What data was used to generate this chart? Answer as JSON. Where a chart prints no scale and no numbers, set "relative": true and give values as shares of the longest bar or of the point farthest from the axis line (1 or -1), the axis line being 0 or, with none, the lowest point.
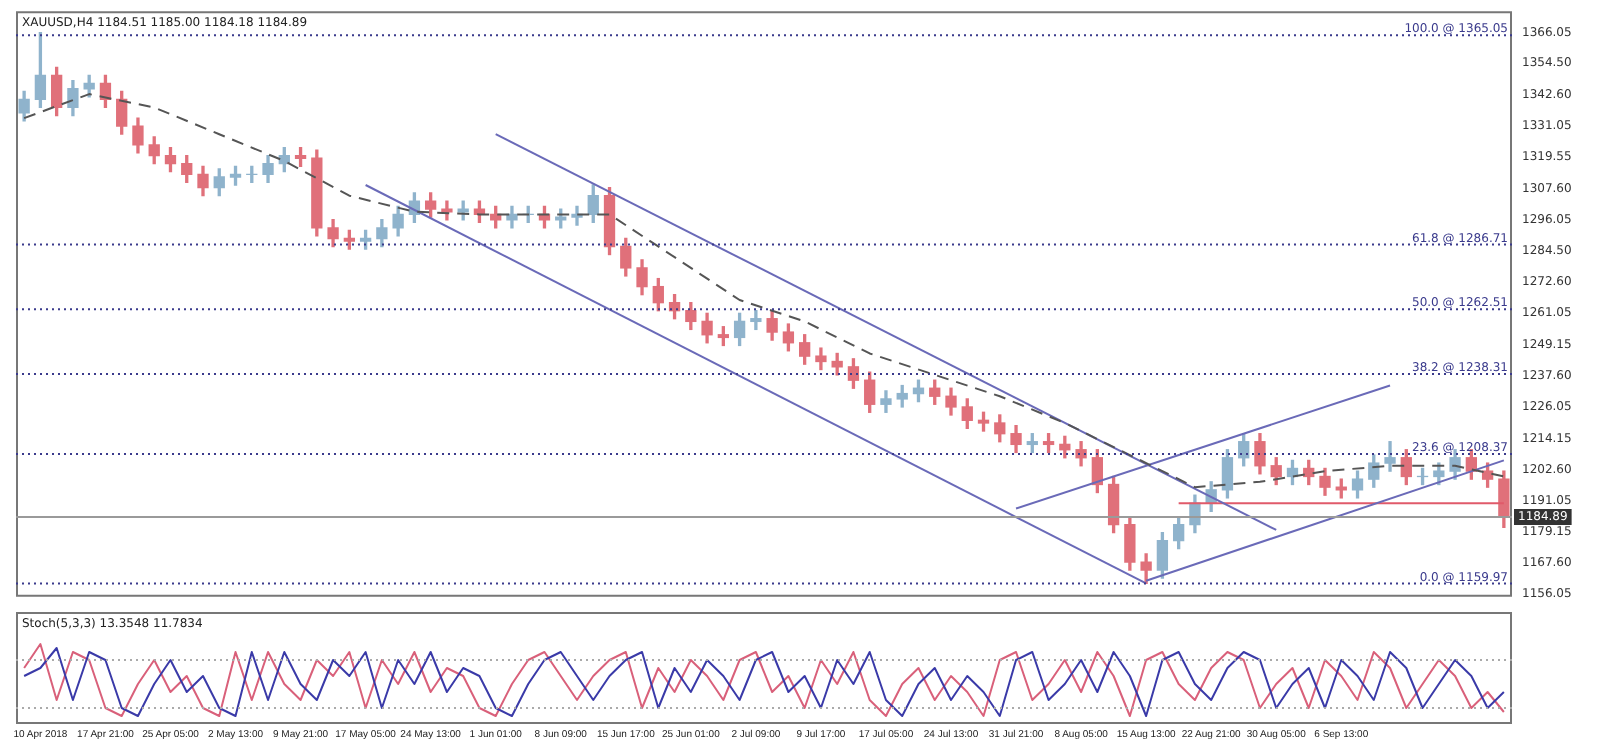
{
  "chart_data": [
    {
      "type": "candlestick",
      "title": "XAUUSD,H4 1184.51 1185.00 1184.18 1184.89",
      "categories": [
        null,
        null,
        null,
        null,
        null,
        null,
        null,
        null,
        null,
        null,
        null,
        null,
        null,
        null,
        null,
        null,
        null,
        null,
        null,
        null,
        null,
        null,
        null,
        null,
        null,
        null,
        null,
        null,
        null,
        null,
        null,
        null,
        null,
        null,
        null,
        null,
        null,
        null,
        null,
        null,
        null,
        null,
        null,
        null,
        null,
        null,
        null,
        null,
        null,
        null,
        null,
        null,
        null,
        null,
        null,
        null,
        null,
        null,
        null,
        null,
        null,
        null,
        null,
        null,
        null,
        null,
        null,
        null,
        null,
        null,
        null,
        null,
        null,
        null,
        null,
        null,
        null,
        null,
        null,
        null,
        null,
        null,
        null,
        null,
        null,
        null,
        null,
        null,
        null,
        null,
        null,
        null
      ],
      "ohlc": [
        [
          1336,
          1344,
          1333,
          1341
        ],
        [
          1341,
          1366,
          1338,
          1350
        ],
        [
          1350,
          1353,
          1335,
          1338
        ],
        [
          1338,
          1348,
          1335,
          1345
        ],
        [
          1345,
          1350,
          1342,
          1347
        ],
        [
          1347,
          1350,
          1338,
          1341
        ],
        [
          1341,
          1344,
          1328,
          1331
        ],
        [
          1331,
          1334,
          1321,
          1324
        ],
        [
          1324,
          1327,
          1317,
          1320
        ],
        [
          1320,
          1323,
          1314,
          1317
        ],
        [
          1317,
          1320,
          1310,
          1313
        ],
        [
          1313,
          1316,
          1305,
          1308
        ],
        [
          1308,
          1315,
          1305,
          1312
        ],
        [
          1312,
          1316,
          1309,
          1313
        ],
        [
          1313,
          1316,
          1310,
          1313
        ],
        [
          1313,
          1320,
          1310,
          1317
        ],
        [
          1317,
          1323,
          1314,
          1320
        ],
        [
          1320,
          1323,
          1316,
          1319
        ],
        [
          1319,
          1322,
          1290,
          1293
        ],
        [
          1293,
          1296,
          1286,
          1289
        ],
        [
          1289,
          1292,
          1285,
          1288
        ],
        [
          1288,
          1292,
          1285,
          1289
        ],
        [
          1289,
          1296,
          1286,
          1293
        ],
        [
          1293,
          1301,
          1290,
          1298
        ],
        [
          1298,
          1306,
          1295,
          1303
        ],
        [
          1303,
          1306,
          1297,
          1300
        ],
        [
          1300,
          1303,
          1296,
          1299
        ],
        [
          1299,
          1303,
          1296,
          1300
        ],
        [
          1300,
          1303,
          1295,
          1298
        ],
        [
          1298,
          1301,
          1293,
          1296
        ],
        [
          1296,
          1301,
          1293,
          1298
        ],
        [
          1298,
          1301,
          1295,
          1298
        ],
        [
          1298,
          1301,
          1293,
          1296
        ],
        [
          1296,
          1300,
          1293,
          1297
        ],
        [
          1297,
          1301,
          1294,
          1298
        ],
        [
          1298,
          1309,
          1295,
          1305
        ],
        [
          1305,
          1308,
          1283,
          1286
        ],
        [
          1286,
          1289,
          1275,
          1278
        ],
        [
          1278,
          1281,
          1268,
          1271
        ],
        [
          1271,
          1274,
          1262,
          1265
        ],
        [
          1265,
          1268,
          1259,
          1262
        ],
        [
          1262,
          1265,
          1255,
          1258
        ],
        [
          1258,
          1261,
          1250,
          1253
        ],
        [
          1253,
          1256,
          1249,
          1252
        ],
        [
          1252,
          1261,
          1249,
          1258
        ],
        [
          1258,
          1262,
          1255,
          1259
        ],
        [
          1259,
          1262,
          1251,
          1254
        ],
        [
          1254,
          1257,
          1247,
          1250
        ],
        [
          1250,
          1253,
          1242,
          1245
        ],
        [
          1245,
          1248,
          1240,
          1243
        ],
        [
          1243,
          1246,
          1238,
          1241
        ],
        [
          1241,
          1244,
          1233,
          1236
        ],
        [
          1236,
          1239,
          1224,
          1227
        ],
        [
          1227,
          1232,
          1224,
          1229
        ],
        [
          1229,
          1234,
          1226,
          1231
        ],
        [
          1231,
          1236,
          1228,
          1233
        ],
        [
          1233,
          1236,
          1227,
          1230
        ],
        [
          1230,
          1233,
          1223,
          1226
        ],
        [
          1226,
          1229,
          1218,
          1221
        ],
        [
          1221,
          1224,
          1217,
          1220
        ],
        [
          1220,
          1223,
          1213,
          1216
        ],
        [
          1216,
          1219,
          1209,
          1212
        ],
        [
          1212,
          1216,
          1209,
          1213
        ],
        [
          1213,
          1216,
          1209,
          1212
        ],
        [
          1212,
          1215,
          1207,
          1210
        ],
        [
          1210,
          1213,
          1204,
          1207
        ],
        [
          1207,
          1210,
          1194,
          1197
        ],
        [
          1197,
          1200,
          1179,
          1182
        ],
        [
          1182,
          1185,
          1165,
          1168
        ],
        [
          1168,
          1171,
          1160,
          1165
        ],
        [
          1165,
          1179,
          1162,
          1176
        ],
        [
          1176,
          1185,
          1173,
          1182
        ],
        [
          1182,
          1193,
          1179,
          1190
        ],
        [
          1190,
          1198,
          1187,
          1195
        ],
        [
          1195,
          1210,
          1192,
          1207
        ],
        [
          1207,
          1216,
          1204,
          1213
        ],
        [
          1213,
          1216,
          1201,
          1204
        ],
        [
          1204,
          1207,
          1197,
          1200
        ],
        [
          1200,
          1206,
          1197,
          1203
        ],
        [
          1203,
          1206,
          1197,
          1200
        ],
        [
          1200,
          1203,
          1193,
          1196
        ],
        [
          1196,
          1199,
          1192,
          1195
        ],
        [
          1195,
          1202,
          1192,
          1199
        ],
        [
          1199,
          1208,
          1196,
          1205
        ],
        [
          1205,
          1213,
          1202,
          1207
        ],
        [
          1207,
          1210,
          1197,
          1200
        ],
        [
          1200,
          1203,
          1197,
          1200
        ],
        [
          1200,
          1205,
          1197,
          1202
        ],
        [
          1202,
          1210,
          1199,
          1207
        ],
        [
          1207,
          1210,
          1199,
          1202
        ],
        [
          1202,
          1205,
          1196,
          1199
        ],
        [
          1199,
          1202,
          1181,
          1185
        ]
      ],
      "series": [
        {
          "type": "line",
          "color": "#555555",
          "line_style": "dashed",
          "values": [
            1334,
            null,
            null,
            null,
            1343,
            null,
            null,
            null,
            1338,
            null,
            null,
            null,
            1328,
            null,
            null,
            null,
            1318,
            null,
            null,
            null,
            1305,
            null,
            null,
            null,
            1299,
            null,
            null,
            null,
            1298,
            null,
            null,
            null,
            1298,
            null,
            null,
            null,
            1298,
            null,
            null,
            null,
            1282,
            null,
            null,
            null,
            1266,
            null,
            null,
            null,
            1258,
            null,
            null,
            null,
            1246,
            null,
            null,
            null,
            1238,
            null,
            null,
            null,
            1230,
            null,
            null,
            null,
            1220,
            null,
            null,
            null,
            1208,
            null,
            null,
            null,
            1196,
            null,
            null,
            null,
            1198,
            null,
            null,
            null,
            1202,
            null,
            null,
            null,
            1204,
            null,
            null,
            null,
            1204,
            null,
            null,
            1200
          ]
        },
        {
          "type": "line",
          "color": "#6a6ab8",
          "line_style": "solid",
          "values": [
            null,
            null,
            null,
            null,
            null,
            null,
            null,
            null,
            null,
            null,
            null,
            null,
            null,
            null,
            null,
            null,
            null,
            null,
            null,
            null,
            null,
            null,
            null,
            null,
            null,
            null,
            null,
            null,
            null,
            1328,
            null,
            null,
            null,
            null,
            null,
            null,
            null,
            null,
            null,
            null,
            null,
            null,
            null,
            null,
            null,
            null,
            null,
            null,
            null,
            null,
            null,
            null,
            null,
            null,
            null,
            null,
            null,
            null,
            null,
            null,
            null,
            null,
            null,
            null,
            null,
            null,
            null,
            null,
            null,
            null,
            null,
            null,
            null,
            null,
            null,
            null,
            null,
            1180,
            null,
            null,
            null,
            null,
            null,
            null,
            null,
            null,
            null,
            null,
            null,
            null,
            null,
            null
          ]
        },
        {
          "type": "line",
          "color": "#6a6ab8",
          "line_style": "solid",
          "values": [
            null,
            null,
            null,
            null,
            null,
            null,
            null,
            null,
            null,
            null,
            null,
            null,
            null,
            null,
            null,
            null,
            null,
            null,
            null,
            null,
            null,
            1309,
            null,
            null,
            null,
            null,
            null,
            null,
            null,
            null,
            null,
            null,
            null,
            null,
            null,
            null,
            null,
            null,
            null,
            null,
            null,
            null,
            null,
            null,
            null,
            null,
            null,
            null,
            null,
            null,
            null,
            null,
            null,
            null,
            null,
            null,
            null,
            null,
            null,
            null,
            null,
            null,
            null,
            null,
            null,
            null,
            null,
            null,
            null,
            1160,
            null,
            null,
            null,
            null,
            null,
            null,
            null,
            null,
            null,
            null,
            null,
            null,
            null,
            null,
            null,
            null,
            null,
            null,
            null,
            null,
            null,
            null
          ]
        },
        {
          "type": "line",
          "color": "#6a6ab8",
          "line_style": "solid",
          "values": [
            null,
            null,
            null,
            null,
            null,
            null,
            null,
            null,
            null,
            null,
            null,
            null,
            null,
            null,
            null,
            null,
            null,
            null,
            null,
            null,
            null,
            null,
            null,
            null,
            null,
            null,
            null,
            null,
            null,
            null,
            null,
            null,
            null,
            null,
            null,
            null,
            null,
            null,
            null,
            null,
            null,
            null,
            null,
            null,
            null,
            null,
            null,
            null,
            null,
            null,
            null,
            null,
            null,
            null,
            null,
            null,
            null,
            null,
            null,
            null,
            null,
            null,
            null,
            null,
            null,
            null,
            null,
            null,
            null,
            1161,
            null,
            null,
            null,
            null,
            null,
            null,
            null,
            null,
            null,
            null,
            null,
            null,
            null,
            null,
            null,
            null,
            null,
            null,
            null,
            null,
            null,
            1206
          ]
        },
        {
          "type": "line",
          "color": "#6a6ab8",
          "line_style": "solid",
          "values": [
            null,
            null,
            null,
            null,
            null,
            null,
            null,
            null,
            null,
            null,
            null,
            null,
            null,
            null,
            null,
            null,
            null,
            null,
            null,
            null,
            null,
            null,
            null,
            null,
            null,
            null,
            null,
            null,
            null,
            null,
            null,
            null,
            null,
            null,
            null,
            null,
            null,
            null,
            null,
            null,
            null,
            null,
            null,
            null,
            null,
            null,
            null,
            null,
            null,
            null,
            null,
            null,
            null,
            null,
            null,
            null,
            null,
            null,
            null,
            null,
            null,
            1188,
            null,
            null,
            null,
            null,
            null,
            null,
            null,
            null,
            null,
            null,
            null,
            null,
            null,
            null,
            null,
            null,
            null,
            null,
            null,
            null,
            null,
            null,
            1234,
            null,
            null,
            null,
            null,
            null,
            null,
            null
          ]
        },
        {
          "type": "line",
          "color": "#e05a6a",
          "line_style": "solid",
          "values": [
            null,
            null,
            null,
            null,
            null,
            null,
            null,
            null,
            null,
            null,
            null,
            null,
            null,
            null,
            null,
            null,
            null,
            null,
            null,
            null,
            null,
            null,
            null,
            null,
            null,
            null,
            null,
            null,
            null,
            null,
            null,
            null,
            null,
            null,
            null,
            null,
            null,
            null,
            null,
            null,
            null,
            null,
            null,
            null,
            null,
            null,
            null,
            null,
            null,
            null,
            null,
            null,
            null,
            null,
            null,
            null,
            null,
            null,
            null,
            null,
            null,
            null,
            null,
            null,
            null,
            null,
            null,
            null,
            null,
            null,
            null,
            1190,
            null,
            null,
            null,
            null,
            null,
            null,
            null,
            null,
            null,
            null,
            null,
            null,
            null,
            null,
            null,
            null,
            null,
            null,
            null,
            1190
          ]
        }
      ],
      "ylim": [
        1155,
        1374
      ],
      "yticks": [
        1366.05,
        {
          "value": 1354.5,
          "label": "1354.50"
        },
        {
          "value": 1342.6,
          "label": "1342.60"
        },
        1331.05,
        1319.55,
        {
          "value": 1307.6,
          "label": "1307.60"
        },
        1296.05,
        {
          "value": 1284.5,
          "label": "1284.50"
        },
        {
          "value": 1272.6,
          "label": "1272.60"
        },
        1261.05,
        1249.15,
        {
          "value": 1237.6,
          "label": "1237.60"
        },
        1226.05,
        1214.15,
        {
          "value": 1202.6,
          "label": "1202.60"
        },
        1191.05,
        1179.15,
        {
          "value": 1167.6,
          "label": "1167.60"
        },
        1156.05
      ],
      "ref_lines": [
        {
          "axis": "y",
          "value": 1365.05,
          "label": "100.0 @ 1365.05",
          "color": "#3a3a8c",
          "line_style": "dotted"
        },
        {
          "axis": "y",
          "value": 1286.71,
          "label": "61.8 @ 1286.71",
          "color": "#3a3a8c",
          "line_style": "dotted"
        },
        {
          "axis": "y",
          "value": 1262.51,
          "label": "50.0 @ 1262.51",
          "color": "#3a3a8c",
          "line_style": "dotted"
        },
        {
          "axis": "y",
          "value": 1238.31,
          "label": "38.2 @ 1238.31",
          "color": "#3a3a8c",
          "line_style": "dotted"
        },
        {
          "axis": "y",
          "value": 1208.37,
          "label": "23.6 @ 1208.37",
          "color": "#3a3a8c",
          "line_style": "dotted"
        },
        {
          "axis": "y",
          "value": 1159.97,
          "label": "0.0 @ 1159.97",
          "color": "#3a3a8c",
          "line_style": "dotted"
        },
        {
          "axis": "y",
          "value": 1184.89,
          "label": "1184.89",
          "color": "#9a9a9a",
          "line_style": "solid"
        }
      ],
      "tick_labels": "y"
    },
    {
      "type": "line",
      "title": "Stoch(5,3,3) 13.3548 11.7834",
      "relative": true,
      "categories": [
        null,
        "10 Apr 2018",
        null,
        null,
        null,
        "17 Apr 21:00",
        null,
        null,
        null,
        "25 Apr 05:00",
        null,
        null,
        null,
        "2 May 13:00",
        null,
        null,
        null,
        "9 May 21:00",
        null,
        null,
        null,
        "17 May 05:00",
        null,
        null,
        null,
        "24 May 13:00",
        null,
        null,
        null,
        "1 Jun 01:00",
        null,
        null,
        null,
        "8 Jun 09:00",
        null,
        null,
        null,
        "15 Jun 17:00",
        null,
        null,
        null,
        "25 Jun 01:00",
        null,
        null,
        null,
        "2 Jul 09:00",
        null,
        null,
        null,
        "9 Jul 17:00",
        null,
        null,
        null,
        "17 Jul 05:00",
        null,
        null,
        null,
        "24 Jul 13:00",
        null,
        null,
        null,
        "31 Jul 21:00",
        null,
        null,
        null,
        "8 Aug 05:00",
        null,
        null,
        null,
        "15 Aug 13:00",
        null,
        null,
        null,
        "22 Aug 21:00",
        null,
        null,
        null,
        "30 Aug 05:00",
        null,
        null,
        null,
        "6 Sep 13:00",
        null,
        null,
        null,
        null,
        null,
        null,
        null,
        null,
        null,
        null
      ],
      "series": [
        {
          "color": "#3a3aa8",
          "values": [
            0.6,
            0.7,
            0.95,
            0.3,
            0.9,
            0.8,
            0.2,
            0.1,
            0.5,
            0.8,
            0.4,
            0.6,
            0.2,
            0.1,
            0.9,
            0.3,
            0.9,
            0.5,
            0.3,
            0.8,
            0.6,
            0.9,
            0.2,
            0.8,
            0.5,
            0.9,
            0.4,
            0.7,
            0.6,
            0.2,
            0.1,
            0.5,
            0.8,
            0.9,
            0.6,
            0.3,
            0.6,
            0.8,
            0.9,
            0.2,
            0.7,
            0.4,
            0.8,
            0.6,
            0.3,
            0.8,
            0.9,
            0.4,
            0.6,
            0.2,
            0.8,
            0.5,
            0.9,
            0.3,
            0.1,
            0.5,
            0.7,
            0.3,
            0.6,
            0.4,
            0.1,
            0.8,
            0.9,
            0.3,
            0.5,
            0.8,
            0.4,
            0.9,
            0.6,
            0.1,
            0.8,
            0.9,
            0.5,
            0.3,
            0.7,
            0.9,
            0.8,
            0.2,
            0.5,
            0.7,
            0.2,
            0.8,
            0.6,
            0.3,
            0.9,
            0.7,
            0.2,
            0.5,
            0.8,
            0.6,
            0.2,
            0.4
          ]
        },
        {
          "color": "#d9607a",
          "values": [
            0.7,
            1,
            0.3,
            0.9,
            0.8,
            0.2,
            0.1,
            0.5,
            0.8,
            0.4,
            0.6,
            0.2,
            0.1,
            0.9,
            0.3,
            0.9,
            0.5,
            0.3,
            0.8,
            0.6,
            0.9,
            0.2,
            0.8,
            0.5,
            0.9,
            0.4,
            0.7,
            0.6,
            0.2,
            0.1,
            0.5,
            0.8,
            0.9,
            0.6,
            0.3,
            0.6,
            0.8,
            0.9,
            0.2,
            0.7,
            0.4,
            0.8,
            0.6,
            0.3,
            0.8,
            0.9,
            0.4,
            0.6,
            0.2,
            0.8,
            0.5,
            0.9,
            0.3,
            0.1,
            0.5,
            0.7,
            0.3,
            0.6,
            0.4,
            0.1,
            0.8,
            0.9,
            0.3,
            0.5,
            0.8,
            0.4,
            0.9,
            0.6,
            0.1,
            0.8,
            0.9,
            0.5,
            0.3,
            0.7,
            0.9,
            0.8,
            0.2,
            0.5,
            0.7,
            0.2,
            0.8,
            0.6,
            0.3,
            0.9,
            0.7,
            0.2,
            0.5,
            0.8,
            0.6,
            0.2,
            0.4,
            0.15
          ]
        }
      ],
      "ref_lines": [
        {
          "axis": "y",
          "value": 0.8,
          "color": "#aaaaaa",
          "line_style": "dotted"
        },
        {
          "axis": "y",
          "value": 0.2,
          "color": "#aaaaaa",
          "line_style": "dotted"
        }
      ],
      "tick_labels": "x"
    }
  ]
}
